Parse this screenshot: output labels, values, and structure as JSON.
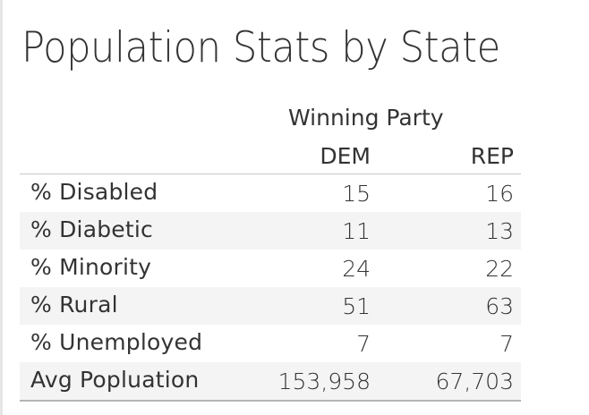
{
  "title": "Population Stats by State",
  "column_group": "Winning Party",
  "columns": [
    "DEM",
    "REP"
  ],
  "rows": [
    {
      "label": "% Disabled",
      "dem": "15",
      "rep": "16"
    },
    {
      "label": "% Diabetic",
      "dem": "11",
      "rep": "13"
    },
    {
      "label": "% Minority",
      "dem": "24",
      "rep": "22"
    },
    {
      "label": "% Rural",
      "dem": "51",
      "rep": "63"
    },
    {
      "label": "% Unemployed",
      "dem": "7",
      "rep": "7"
    },
    {
      "label": "Avg Popluation",
      "dem": "153,958",
      "rep": "67,703"
    }
  ]
}
